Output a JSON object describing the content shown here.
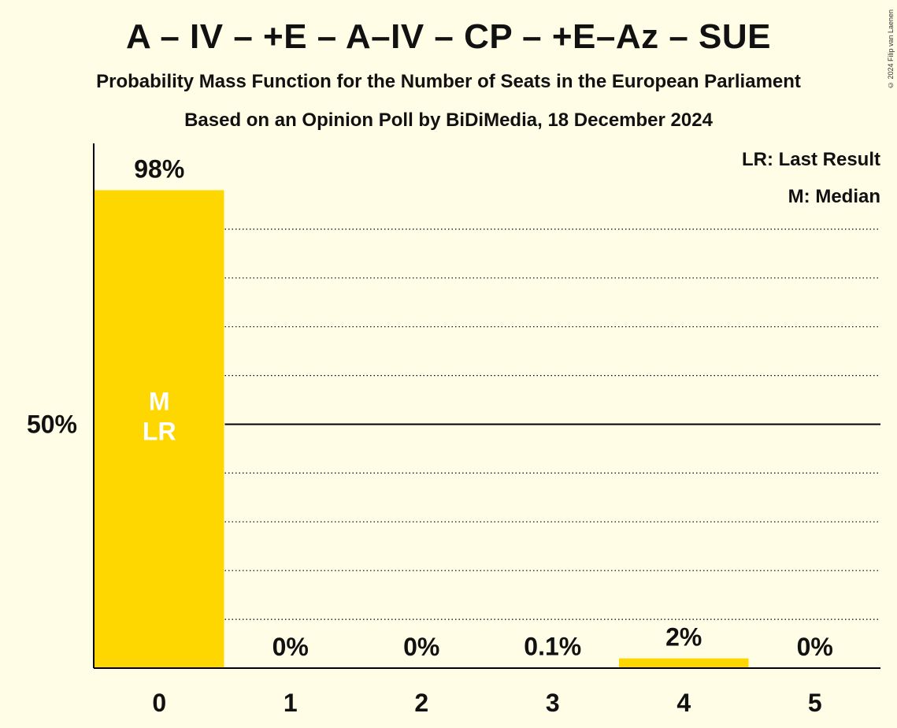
{
  "title": "A – IV – +E – A–IV – CP – +E–Az – SUE",
  "subtitle": "Probability Mass Function for the Number of Seats in the European Parliament",
  "subtitle2": "Based on an Opinion Poll by BiDiMedia, 18 December 2024",
  "copyright": "© 2024 Filip van Laenen",
  "legend": {
    "lr": "LR: Last Result",
    "m": "M: Median"
  },
  "colors": {
    "bar": "#FFD700",
    "background": "#FFFDE6",
    "axis": "#000000"
  },
  "chart_data": {
    "type": "bar",
    "categories": [
      "0",
      "1",
      "2",
      "3",
      "4",
      "5"
    ],
    "values": [
      98,
      0,
      0,
      0.1,
      2,
      0
    ],
    "value_labels": [
      "98%",
      "0%",
      "0%",
      "0.1%",
      "2%",
      "0%"
    ],
    "ylim": [
      0,
      100
    ],
    "y_ticks": [
      {
        "value": 50,
        "label": "50%"
      }
    ],
    "gridlines": [
      10,
      20,
      30,
      40,
      50,
      60,
      70,
      80,
      90
    ],
    "solid_gridline": 50,
    "bar_annotations": [
      {
        "category": "0",
        "lines": [
          "M",
          "LR"
        ]
      }
    ],
    "legend_position": "top-right"
  }
}
